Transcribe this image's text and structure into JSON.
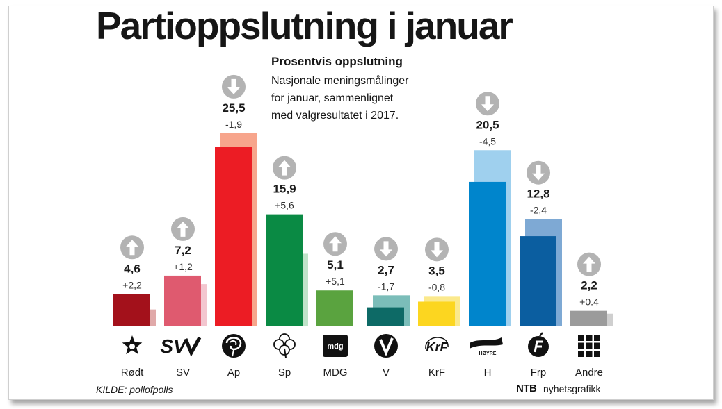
{
  "title": "Partioppslutning i januar",
  "subtitle": "Prosentvis oppslutning",
  "description": [
    "Nasjonale meningsmålinger",
    "for januar, sammenlignet",
    "med valgresultatet i 2017."
  ],
  "source": "KILDE: pollofpolls",
  "credit": {
    "brand": "NTB",
    "text": "nyhetsgrafikk"
  },
  "chart_data": {
    "type": "bar",
    "title": "Partioppslutning i januar",
    "subtitle": "Prosentvis oppslutning",
    "xlabel": "",
    "ylabel": "",
    "ylim": [
      0,
      30
    ],
    "grid": false,
    "categories": [
      "Rødt",
      "SV",
      "Ap",
      "Sp",
      "MDG",
      "V",
      "KrF",
      "H",
      "Frp",
      "Andre"
    ],
    "series": [
      {
        "name": "Januar",
        "values": [
          4.6,
          7.2,
          25.5,
          15.9,
          5.1,
          2.7,
          3.5,
          20.5,
          12.8,
          2.2
        ],
        "value_labels": [
          "4,6",
          "7,2",
          "25,5",
          "15,9",
          "5,1",
          "2,7",
          "3,5",
          "20,5",
          "12,8",
          "2,2"
        ]
      },
      {
        "name": "Valgresultat 2017",
        "values": [
          2.4,
          6.0,
          27.4,
          10.3,
          0.0,
          4.4,
          4.3,
          25.0,
          15.2,
          1.8
        ]
      }
    ],
    "changes": [
      "+2,2",
      "+1,2",
      "-1,9",
      "+5,6",
      "+5,1",
      "-1,7",
      "-0,8",
      "-4,5",
      "-2,4",
      "+0.4"
    ],
    "directions": [
      "up",
      "up",
      "down",
      "up",
      "up",
      "down",
      "down",
      "down",
      "down",
      "up"
    ],
    "colors": {
      "current": [
        "#a3111b",
        "#df5a6f",
        "#ec1c24",
        "#0a8a44",
        "#5aa33f",
        "#0d6a66",
        "#fcd620",
        "#0085cc",
        "#0b5ea0",
        "#9b9b9b"
      ],
      "previous": [
        "#e0a9a9",
        "#f3c6cf",
        "#f7a58c",
        "#bfe3c9",
        "#cfe3bf",
        "#7bbdb9",
        "#fbe98c",
        "#9fd0ee",
        "#7ea9d4",
        "#cfcfcf"
      ],
      "arrow": "#b3b3b3"
    },
    "icons": [
      "star-icon",
      "sv-logo-icon",
      "rose-icon",
      "clover-icon",
      "mdg-logo-icon",
      "v-logo-icon",
      "krf-logo-icon",
      "hoyre-logo-icon",
      "frp-logo-icon",
      "grid-icon"
    ],
    "logo_texts": {
      "sv": "SV",
      "mdg": "mdg",
      "krf": "KrF",
      "hoyre": "HØYRE"
    }
  }
}
